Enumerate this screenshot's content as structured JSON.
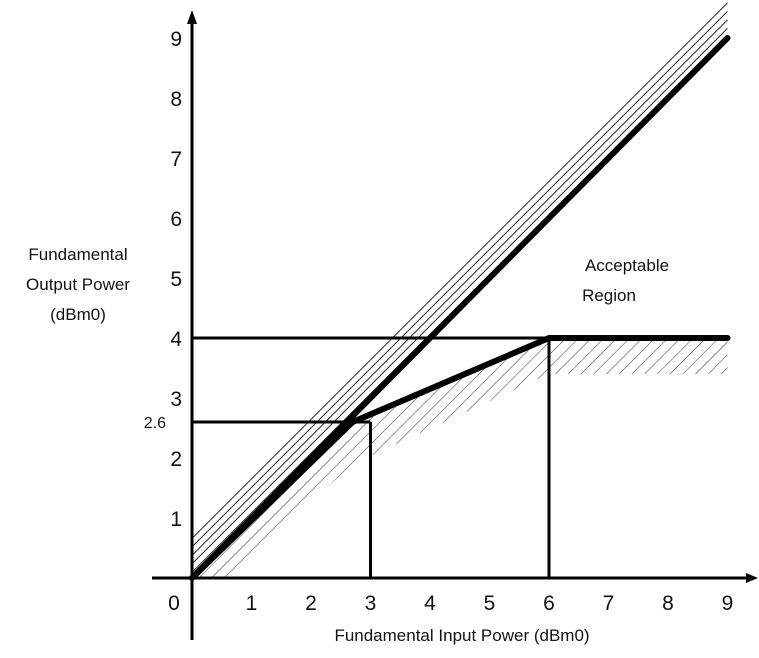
{
  "chart_data": {
    "type": "line",
    "xlabel": "Fundamental Input Power (dBm0)",
    "ylabel_lines": [
      "Fundamental",
      "Output Power",
      "(dBm0)"
    ],
    "annotation_lines": [
      "Acceptable",
      "Region"
    ],
    "xlim": [
      0,
      9
    ],
    "ylim": [
      0,
      9
    ],
    "x_ticks": [
      {
        "value": 0,
        "label": "0"
      },
      {
        "value": 1,
        "label": "1"
      },
      {
        "value": 2,
        "label": "2"
      },
      {
        "value": 3,
        "label": "3"
      },
      {
        "value": 4,
        "label": "4"
      },
      {
        "value": 5,
        "label": "5"
      },
      {
        "value": 6,
        "label": "6"
      },
      {
        "value": 7,
        "label": "7"
      },
      {
        "value": 8,
        "label": "8"
      },
      {
        "value": 9,
        "label": "9"
      }
    ],
    "y_ticks": [
      {
        "value": 1,
        "label": "1"
      },
      {
        "value": 2,
        "label": "2"
      },
      {
        "value": 2.6,
        "label": "2.6"
      },
      {
        "value": 3,
        "label": "3"
      },
      {
        "value": 4,
        "label": "4"
      },
      {
        "value": 5,
        "label": "5"
      },
      {
        "value": 6,
        "label": "6"
      },
      {
        "value": 7,
        "label": "7"
      },
      {
        "value": 8,
        "label": "8"
      },
      {
        "value": 9,
        "label": "9"
      }
    ],
    "series": [
      {
        "x": [
          0,
          9
        ],
        "y": [
          0,
          9
        ],
        "style": "thick"
      },
      {
        "x": [
          0,
          2.7,
          6,
          9
        ],
        "y": [
          0,
          2.6,
          4,
          4
        ],
        "style": "thick"
      }
    ],
    "reference_lines": [
      {
        "x": [
          0,
          9
        ],
        "y": [
          4,
          4
        ]
      },
      {
        "x": [
          0,
          3
        ],
        "y": [
          2.6,
          2.6
        ]
      },
      {
        "x": [
          3,
          3
        ],
        "y": [
          0,
          2.6
        ]
      },
      {
        "x": [
          6,
          6
        ],
        "y": [
          0,
          4
        ]
      }
    ],
    "hatched_regions": [
      {
        "name": "above-linear-line",
        "x": [
          0,
          9,
          9,
          0
        ],
        "y": [
          0,
          9,
          9.7,
          0.7
        ]
      },
      {
        "name": "below-compression-curve",
        "x": [
          0,
          2.7,
          6,
          9,
          9,
          6,
          2.7,
          0.6
        ],
        "y": [
          0,
          2.6,
          4,
          4,
          3.4,
          3.4,
          1.9,
          0
        ]
      }
    ],
    "grid": false,
    "colors": {
      "line": "#000000",
      "hatch": "#222222"
    }
  }
}
